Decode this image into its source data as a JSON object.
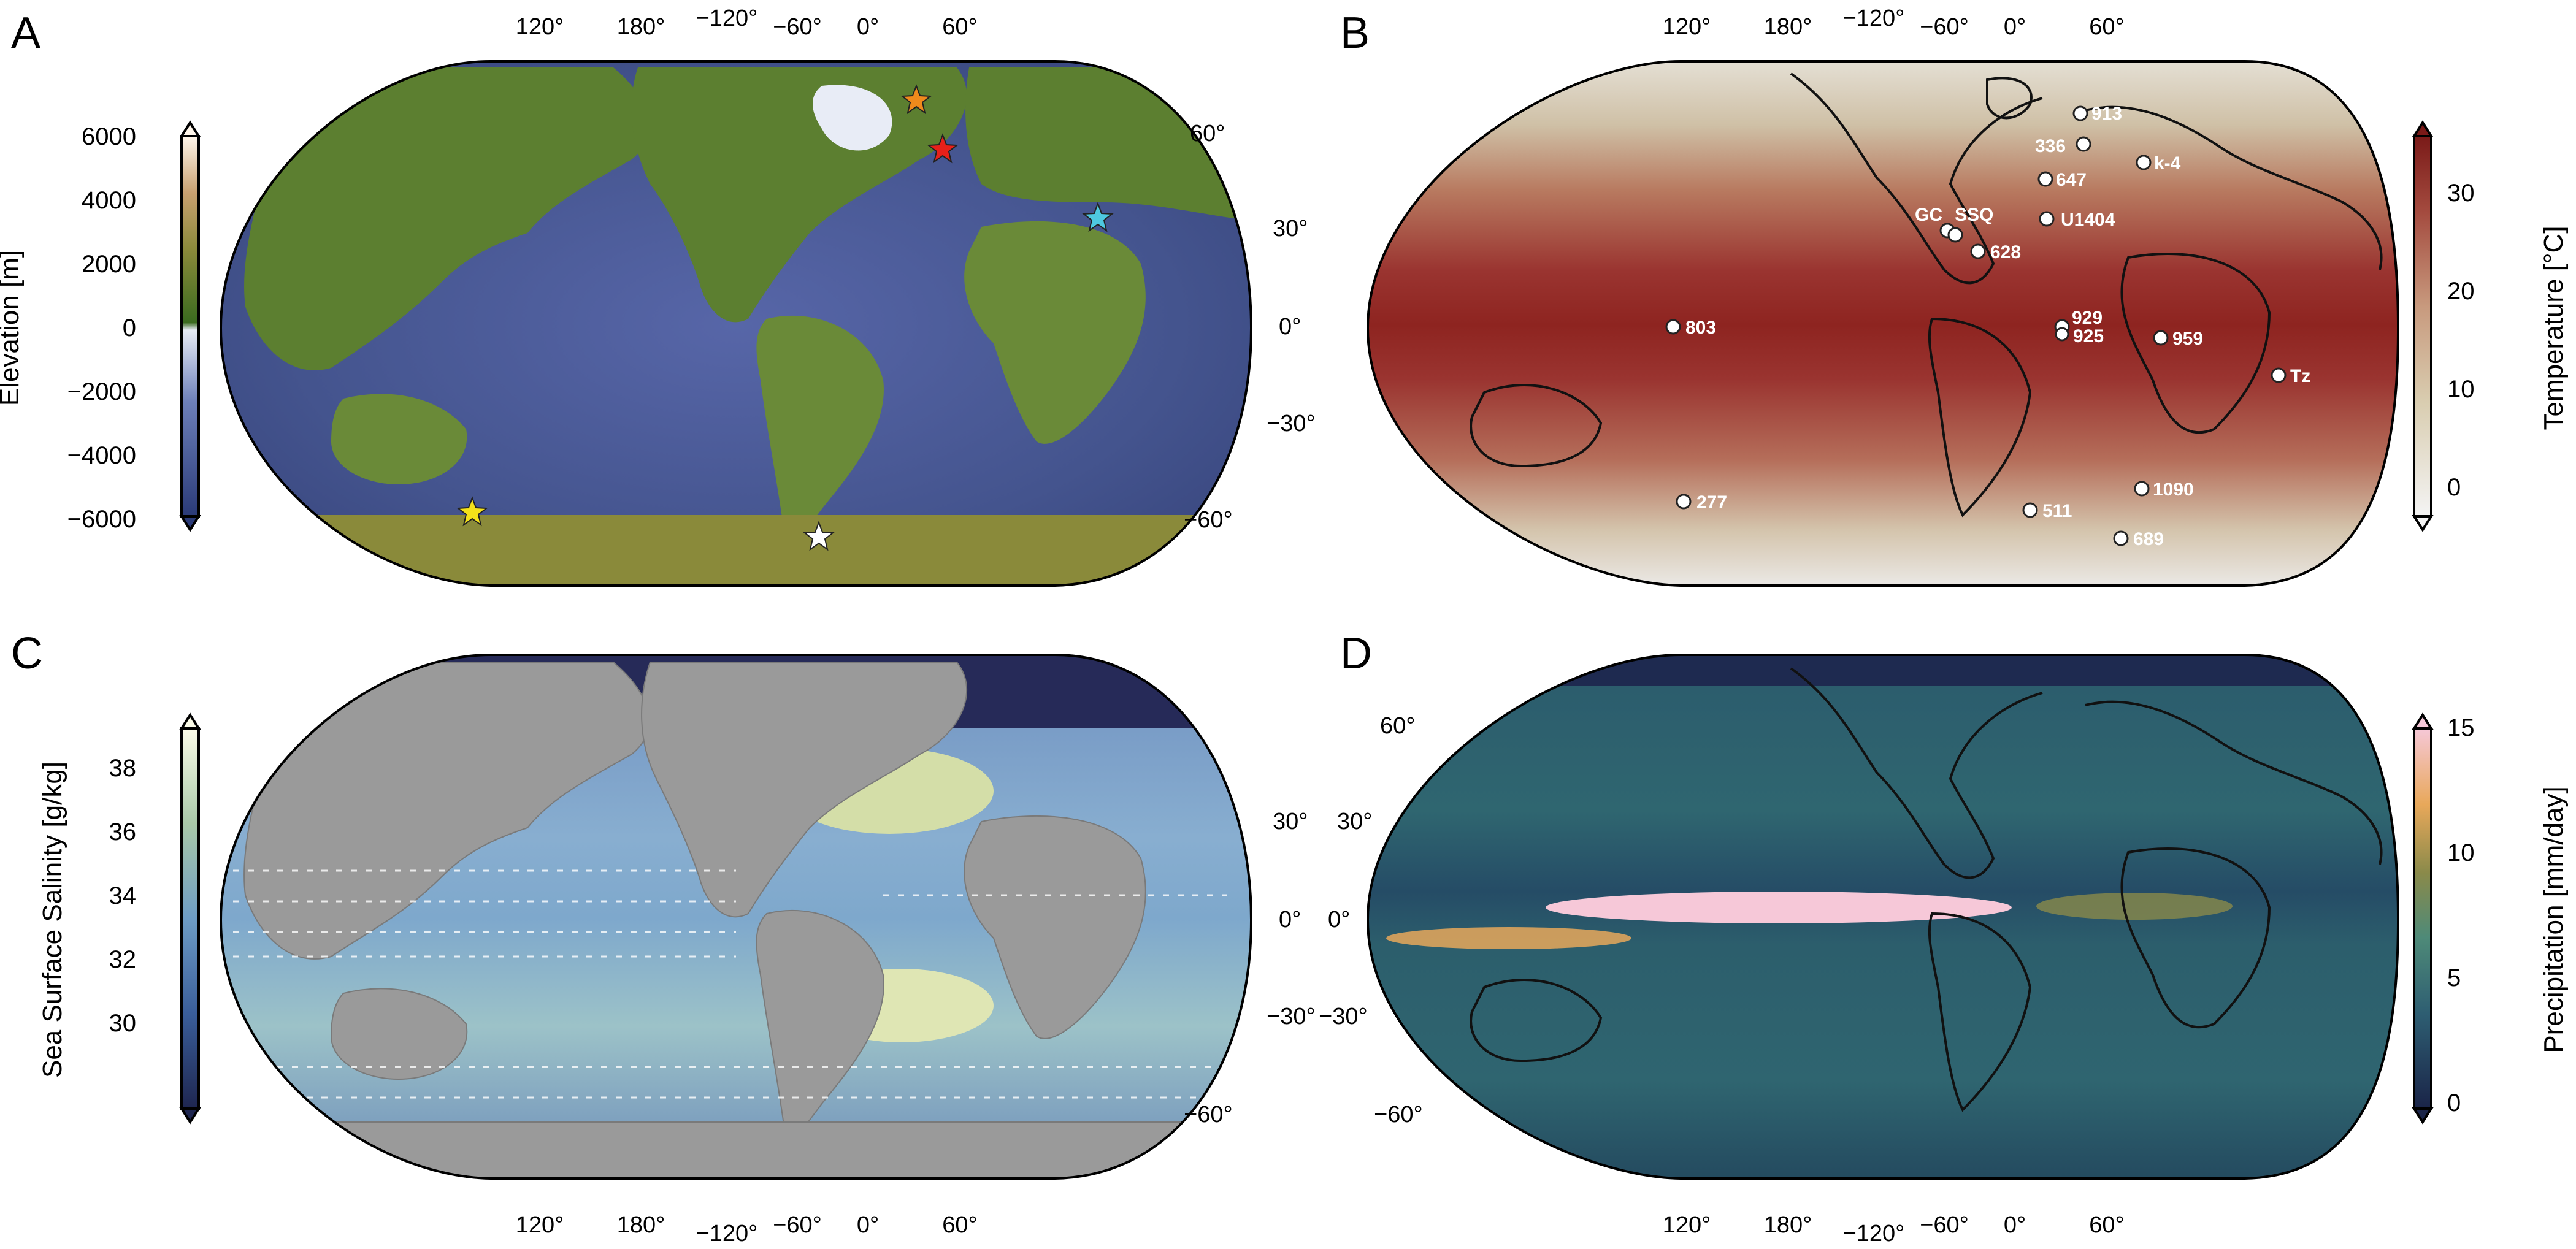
{
  "panels": [
    {
      "letter": "A",
      "top_lon_labels": [
        "120°",
        "180°",
        "−120°",
        "−60°",
        "0°",
        "60°"
      ],
      "right_lat_labels": [
        "60°",
        "30°",
        "0°",
        "−30°",
        "−60°"
      ],
      "colorbar": {
        "title": "Elevation [m]",
        "ticks": [
          "6000",
          "4000",
          "2000",
          "0",
          "−2000",
          "−4000",
          "−6000"
        ],
        "colors": [
          "#2a3a78",
          "#6c7fb8",
          "#e8ecf6",
          "#3b6b1f",
          "#8a8a3a",
          "#c8a070",
          "#fff6ea"
        ]
      },
      "stars": [
        {
          "name": "orange-star",
          "color": "#f08a1c"
        },
        {
          "name": "red-star",
          "color": "#e8201a"
        },
        {
          "name": "cyan-star",
          "color": "#4ec8e0"
        },
        {
          "name": "yellow-star",
          "color": "#f4e21a"
        },
        {
          "name": "white-star",
          "color": "#ffffff"
        }
      ]
    },
    {
      "letter": "B",
      "top_lon_labels": [
        "120°",
        "180°",
        "−120°",
        "−60°",
        "0°",
        "60°"
      ],
      "colorbar": {
        "title": "Temperature [°C]",
        "ticks": [
          "30",
          "20",
          "10",
          "0"
        ],
        "colors": [
          "#f4f4f4",
          "#d9cdb0",
          "#c89a7e",
          "#a44b3f",
          "#7a1a18"
        ]
      },
      "sites": [
        "913",
        "336",
        "k-4",
        "647",
        "GC",
        "SSQ",
        "U1404",
        "628",
        "803",
        "929",
        "925",
        "959",
        "Tz",
        "277",
        "1090",
        "511",
        "689"
      ]
    },
    {
      "letter": "C",
      "bottom_lon_labels": [
        "120°",
        "180°",
        "−120°",
        "−60°",
        "0°",
        "60°"
      ],
      "right_lat_labels": [
        "30°",
        "0°",
        "−30°",
        "−60°"
      ],
      "colorbar": {
        "title": "Sea Surface Salinity [g/kg]",
        "ticks": [
          "38",
          "36",
          "34",
          "32",
          "30"
        ],
        "colors": [
          "#1e2650",
          "#3a5e9a",
          "#6e9cc4",
          "#a8c8a8",
          "#fbfbe8"
        ]
      }
    },
    {
      "letter": "D",
      "bottom_lon_labels": [
        "120°",
        "180°",
        "−120°",
        "−60°",
        "0°",
        "60°"
      ],
      "left_lat_labels": [
        "60°",
        "30°",
        "0°",
        "−30°",
        "−60°"
      ],
      "colorbar": {
        "title": "Precipitation [mm/day]",
        "ticks": [
          "15",
          "10",
          "5",
          "0"
        ],
        "colors": [
          "#1a2448",
          "#2e5e72",
          "#4e8a78",
          "#8a8a4a",
          "#e8a85a",
          "#f6c8d8"
        ]
      }
    }
  ]
}
